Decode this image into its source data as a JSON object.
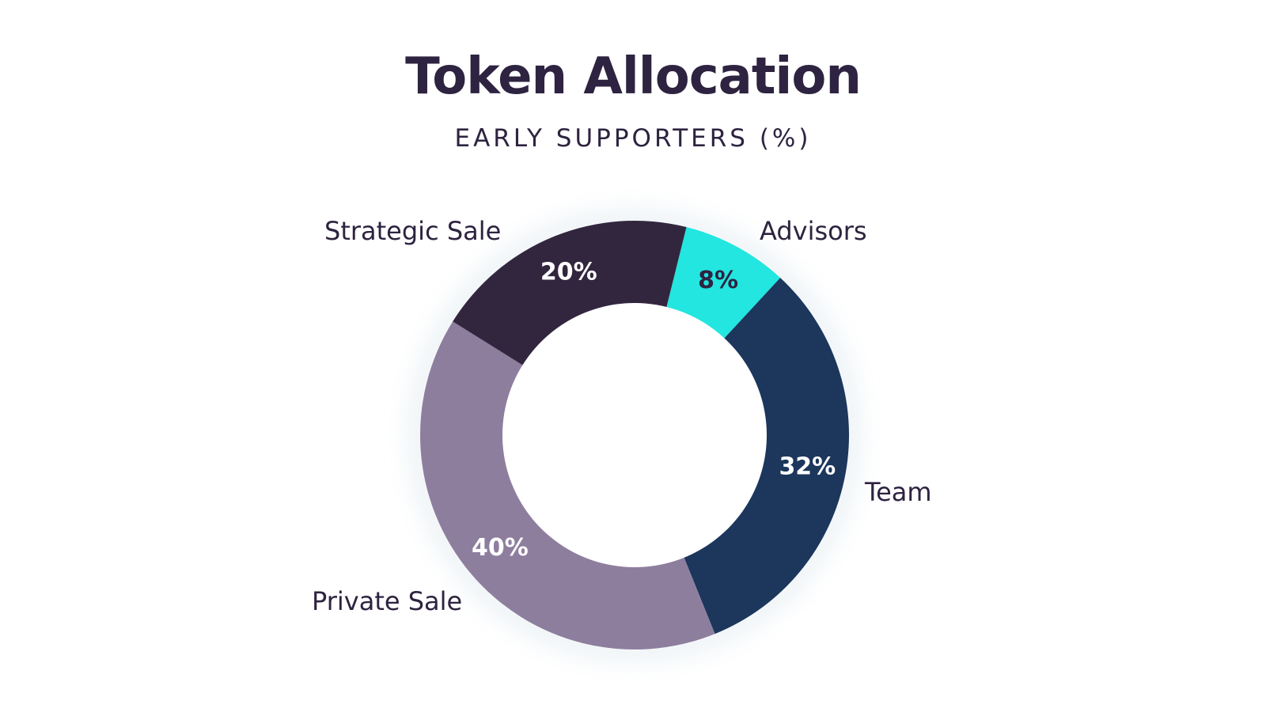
{
  "chart_data": {
    "type": "pie",
    "title": "Token Allocation",
    "subtitle": "EARLY SUPPORTERS (%)",
    "slices": [
      {
        "label": "Advisors",
        "value": 8,
        "value_label": "8%",
        "color": "#22e6df",
        "label_color": "#2e2340"
      },
      {
        "label": "Team",
        "value": 32,
        "value_label": "32%",
        "color": "#1c365c",
        "label_color": "#ffffff"
      },
      {
        "label": "Private Sale",
        "value": 40,
        "value_label": "40%",
        "color": "#8e7e9e",
        "label_color": "#ffffff"
      },
      {
        "label": "Strategic Sale",
        "value": 20,
        "value_label": "20%",
        "color": "#32263f",
        "label_color": "#ffffff"
      }
    ]
  }
}
